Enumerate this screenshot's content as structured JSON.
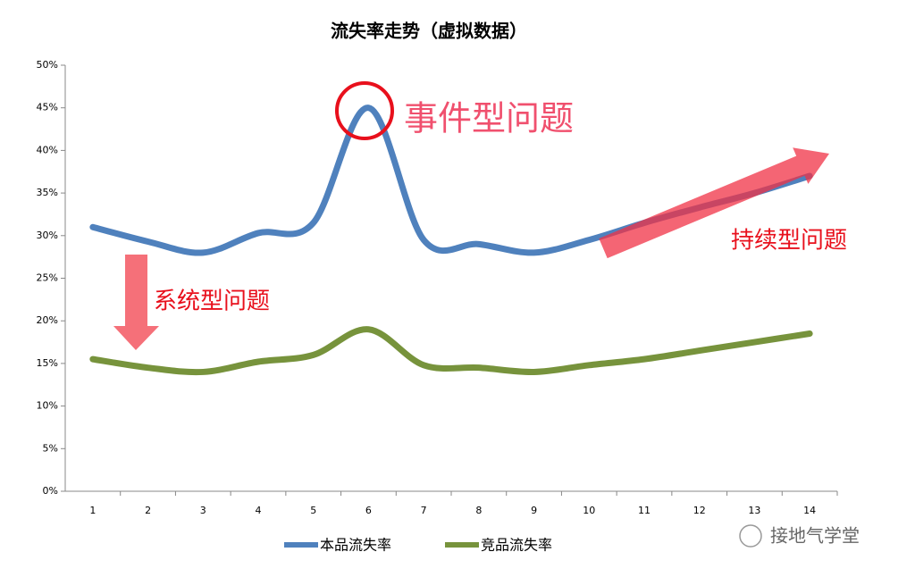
{
  "chart_data": {
    "type": "line",
    "title": "流失率走势（虚拟数据）",
    "categories": [
      "1",
      "2",
      "3",
      "4",
      "5",
      "6",
      "7",
      "8",
      "9",
      "10",
      "11",
      "12",
      "13",
      "14"
    ],
    "series": [
      {
        "name": "本品流失率",
        "color": "#4f81bd",
        "values": [
          31,
          29.3,
          28,
          30.3,
          31.5,
          45,
          29.5,
          29,
          28,
          29.5,
          31.5,
          33.3,
          35,
          37
        ]
      },
      {
        "name": "竞品流失率",
        "color": "#77933c",
        "values": [
          15.5,
          14.5,
          14,
          15.2,
          16,
          19,
          14.8,
          14.5,
          14,
          14.8,
          15.5,
          16.5,
          17.5,
          18.5
        ]
      }
    ],
    "ylim": [
      0,
      50
    ],
    "yticks": [
      {
        "value": 0,
        "label": "0%"
      },
      {
        "value": 5,
        "label": "5%"
      },
      {
        "value": 10,
        "label": "10%"
      },
      {
        "value": 15,
        "label": "15%"
      },
      {
        "value": 20,
        "label": "20%"
      },
      {
        "value": 25,
        "label": "25%"
      },
      {
        "value": 30,
        "label": "30%"
      },
      {
        "value": 35,
        "label": "35%"
      },
      {
        "value": 40,
        "label": "40%"
      },
      {
        "value": 45,
        "label": "45%"
      },
      {
        "value": 50,
        "label": "50%"
      }
    ],
    "grid": false,
    "legend": "bottom",
    "annotations": [
      "事件型问题",
      "系统型问题",
      "持续型问题"
    ],
    "watermark": "接地气学堂"
  }
}
